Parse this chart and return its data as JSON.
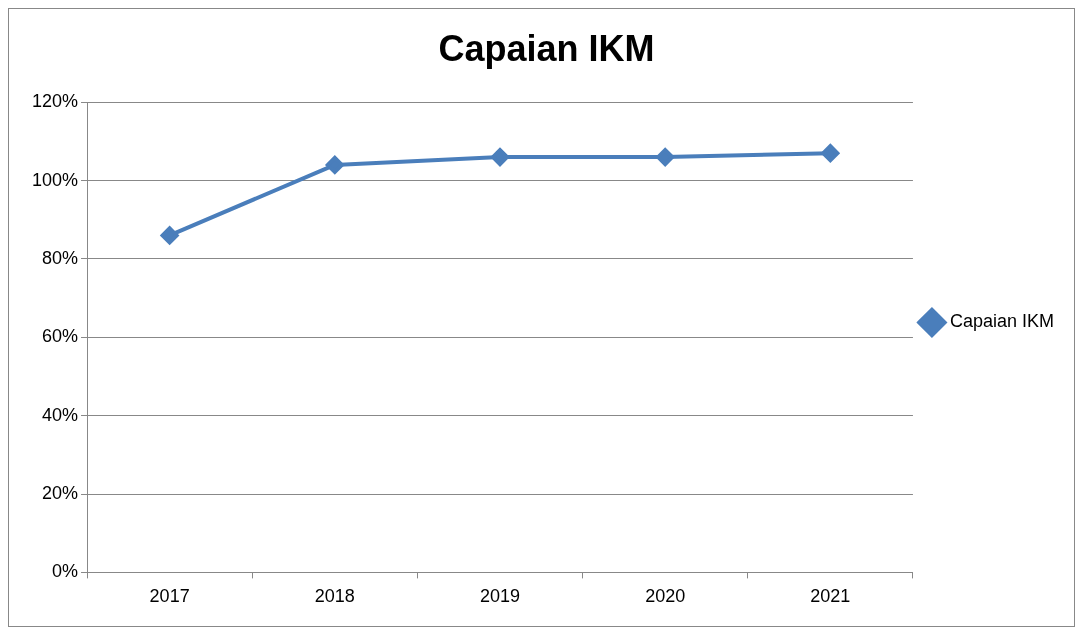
{
  "chart_data": {
    "type": "line",
    "title": "Capaian IKM",
    "categories": [
      "2017",
      "2018",
      "2019",
      "2020",
      "2021"
    ],
    "series": [
      {
        "name": "Capaian IKM",
        "color": "#4a7ebb",
        "values": [
          86,
          104,
          106,
          106,
          107
        ]
      }
    ],
    "ylim": [
      0,
      120
    ],
    "yticks": [
      {
        "value": 0,
        "label": "0%"
      },
      {
        "value": 20,
        "label": "20%"
      },
      {
        "value": 40,
        "label": "40%"
      },
      {
        "value": 60,
        "label": "60%"
      },
      {
        "value": 80,
        "label": "80%"
      },
      {
        "value": 100,
        "label": "100%"
      },
      {
        "value": 120,
        "label": "120%"
      }
    ],
    "grid": "y",
    "legend": "right",
    "marker": "diamond",
    "line_style": "solid"
  }
}
